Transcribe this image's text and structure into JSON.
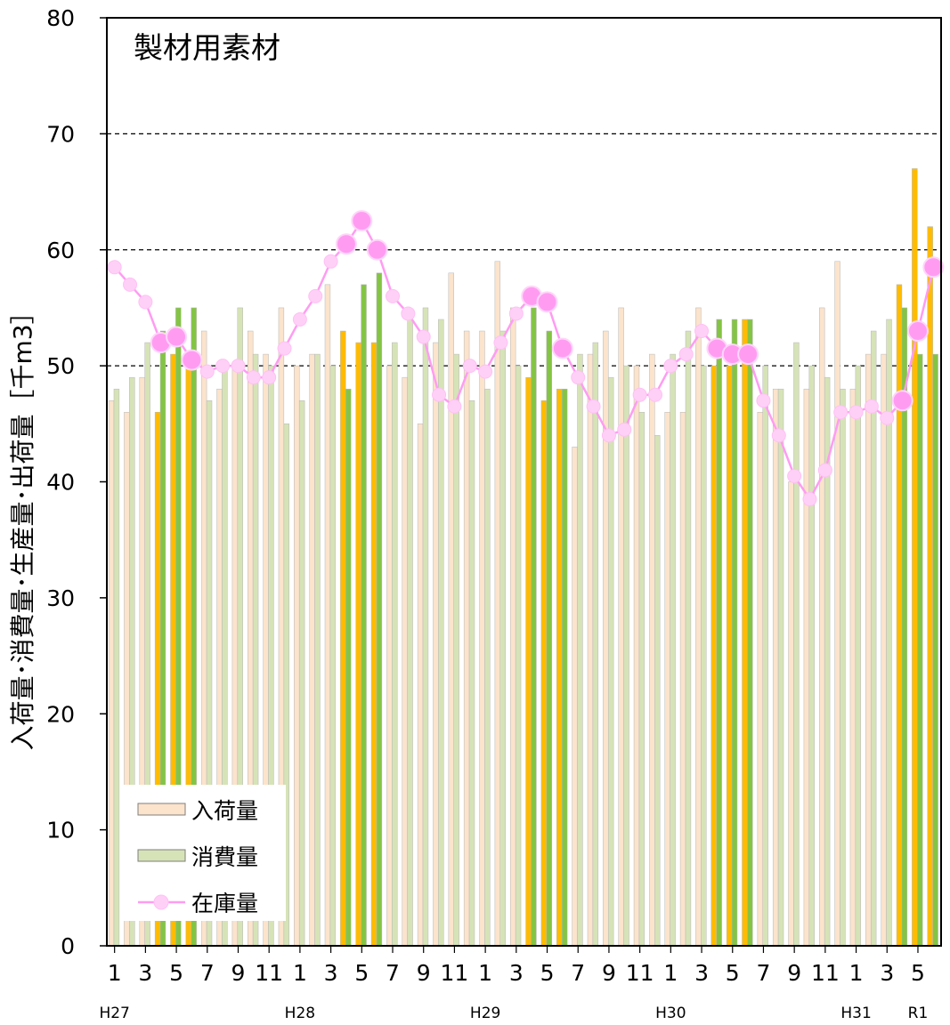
{
  "chart_data": {
    "type": "bar",
    "title": "製材用素材",
    "ylabel": "入荷量･消費量･生産量･出荷量［千m3］",
    "xlabel": "",
    "ylim": [
      0,
      80
    ],
    "yticks": [
      0,
      10,
      20,
      30,
      40,
      50,
      60,
      70,
      80
    ],
    "grid_y_dashed": [
      50,
      60,
      70
    ],
    "legend_position": "bottom-left",
    "month_labels": [
      "1",
      "3",
      "5",
      "7",
      "9",
      "11",
      "1",
      "3",
      "5",
      "7",
      "9",
      "11",
      "1",
      "3",
      "5",
      "7",
      "9",
      "11",
      "1",
      "3",
      "5",
      "7",
      "9",
      "11",
      "1",
      "3",
      "5"
    ],
    "year_labels": [
      {
        "label": "H27",
        "month_index": 0
      },
      {
        "label": "H28",
        "month_index": 12
      },
      {
        "label": "H29",
        "month_index": 24
      },
      {
        "label": "H30",
        "month_index": 36
      },
      {
        "label": "H31",
        "month_index": 48
      },
      {
        "label": "R1",
        "month_index": 52
      }
    ],
    "series": [
      {
        "name": "入荷量",
        "kind": "bar",
        "color": "#fbe3cc",
        "values": [
          47,
          46,
          49,
          46,
          51,
          50,
          53,
          48,
          50,
          53,
          51,
          55,
          50,
          51,
          57,
          53,
          52,
          52,
          50,
          49,
          45,
          52,
          58,
          53,
          53,
          59,
          55,
          49,
          47,
          48,
          43,
          51,
          53,
          55,
          50,
          51,
          46,
          46,
          55,
          50,
          50,
          54,
          46,
          48,
          40,
          48,
          55,
          59,
          48,
          51,
          51,
          57,
          67,
          62
        ]
      },
      {
        "name": "消費量",
        "kind": "bar",
        "color": "#d6e3b7",
        "values": [
          48,
          49,
          52,
          53,
          55,
          55,
          47,
          50,
          55,
          51,
          50,
          45,
          47,
          51,
          50,
          48,
          57,
          58,
          52,
          54,
          55,
          54,
          51,
          47,
          48,
          53,
          50,
          55,
          53,
          48,
          51,
          52,
          49,
          50,
          46,
          44,
          51,
          53,
          50,
          54,
          54,
          54,
          50,
          48,
          52,
          50,
          49,
          48,
          50,
          53,
          54,
          55,
          51,
          51
        ]
      },
      {
        "name": "在庫量",
        "kind": "line",
        "color": "#ff9cf2",
        "values": [
          58.5,
          57,
          55.5,
          52,
          52.5,
          50.5,
          49.5,
          50,
          50,
          49,
          49,
          51.5,
          54,
          56,
          59,
          60.5,
          62.5,
          60,
          56,
          54.5,
          52.5,
          47.5,
          46.5,
          50,
          49.5,
          52,
          54.5,
          56,
          55.5,
          51.5,
          49,
          46.5,
          44,
          44.5,
          47.5,
          47.5,
          50,
          51,
          53,
          51.5,
          51,
          51,
          47,
          44,
          40.5,
          38.5,
          41,
          46,
          46,
          46.5,
          45.5,
          47,
          53,
          58.5
        ]
      }
    ],
    "highlight_months": [
      3,
      4,
      5,
      15,
      16,
      17,
      27,
      28,
      29,
      39,
      40,
      41,
      51,
      52,
      53
    ],
    "highlight_colors": {
      "入荷量": "#ffbb00",
      "消費量": "#84c445",
      "在庫量": "#ff9cf2"
    },
    "frame_color": "#000000"
  }
}
